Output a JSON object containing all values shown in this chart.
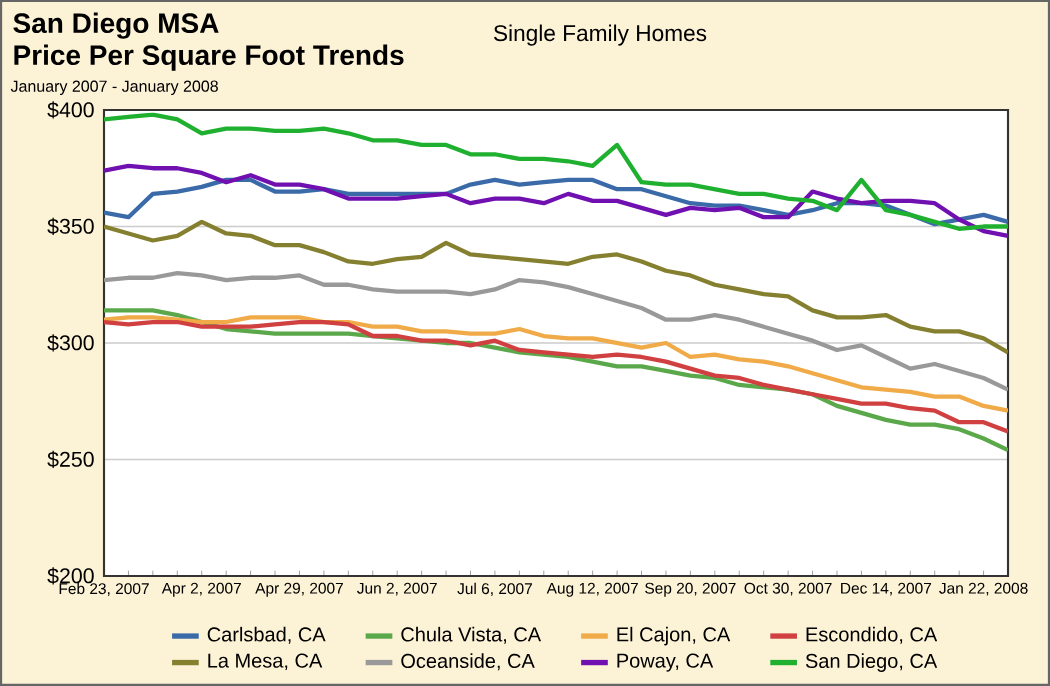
{
  "chart_data": {
    "type": "line",
    "title": "San Diego MSA",
    "subtitle": "Price Per Square Foot Trends",
    "annotations": [
      "Single Family Homes",
      "January 2007 - January 2008"
    ],
    "categories": [
      "Feb 23, 2007",
      null,
      null,
      null,
      "Apr 2, 2007",
      null,
      null,
      null,
      "Apr 29, 2007",
      null,
      null,
      null,
      "Jun 2, 2007",
      null,
      null,
      null,
      "Jul 6, 2007",
      null,
      null,
      null,
      "Aug 12, 2007",
      null,
      null,
      null,
      "Sep 20, 2007",
      null,
      null,
      null,
      "Oct 30, 2007",
      null,
      null,
      null,
      "Dec 14, 2007",
      null,
      null,
      null,
      "Jan 22, 2008",
      null
    ],
    "series": [
      {
        "name": "Carlsbad, CA",
        "color": "#3a6aa8",
        "values": [
          356,
          354,
          364,
          365,
          367,
          370,
          370,
          365,
          365,
          366,
          364,
          364,
          364,
          364,
          364,
          368,
          370,
          368,
          369,
          370,
          370,
          366,
          366,
          363,
          360,
          359,
          359,
          357,
          355,
          357,
          360,
          360,
          359,
          355,
          351,
          353,
          355,
          352
        ]
      },
      {
        "name": "Chula Vista, CA",
        "color": "#5aa84a",
        "values": [
          314,
          314,
          314,
          312,
          309,
          306,
          305,
          304,
          304,
          304,
          304,
          303,
          302,
          301,
          300,
          300,
          298,
          296,
          295,
          294,
          292,
          290,
          290,
          288,
          286,
          285,
          282,
          281,
          280,
          278,
          273,
          270,
          267,
          265,
          265,
          263,
          259,
          254
        ]
      },
      {
        "name": "El Cajon, CA",
        "color": "#f0aa48",
        "values": [
          310,
          311,
          311,
          310,
          309,
          309,
          311,
          311,
          311,
          309,
          309,
          307,
          307,
          305,
          305,
          304,
          304,
          306,
          303,
          302,
          302,
          300,
          298,
          300,
          294,
          295,
          293,
          292,
          290,
          287,
          284,
          281,
          280,
          279,
          277,
          277,
          273,
          271
        ]
      },
      {
        "name": "Escondido, CA",
        "color": "#d04040",
        "values": [
          309,
          308,
          309,
          309,
          307,
          307,
          307,
          308,
          309,
          309,
          308,
          303,
          303,
          301,
          301,
          299,
          301,
          297,
          296,
          295,
          294,
          295,
          294,
          292,
          289,
          286,
          285,
          282,
          280,
          278,
          276,
          274,
          274,
          272,
          271,
          266,
          266,
          262
        ]
      },
      {
        "name": "La Mesa, CA",
        "color": "#858030",
        "values": [
          350,
          347,
          344,
          346,
          352,
          347,
          346,
          342,
          342,
          339,
          335,
          334,
          336,
          337,
          343,
          338,
          337,
          336,
          335,
          334,
          337,
          338,
          335,
          331,
          329,
          325,
          323,
          321,
          320,
          314,
          311,
          311,
          312,
          307,
          305,
          305,
          302,
          296
        ]
      },
      {
        "name": "Oceanside, CA",
        "color": "#999999",
        "values": [
          327,
          328,
          328,
          330,
          329,
          327,
          328,
          328,
          329,
          325,
          325,
          323,
          322,
          322,
          322,
          321,
          323,
          327,
          326,
          324,
          321,
          318,
          315,
          310,
          310,
          312,
          310,
          307,
          304,
          301,
          297,
          299,
          294,
          289,
          291,
          288,
          285,
          280
        ]
      },
      {
        "name": "Poway, CA",
        "color": "#7010b0",
        "values": [
          374,
          376,
          375,
          375,
          373,
          369,
          372,
          368,
          368,
          366,
          362,
          362,
          362,
          363,
          364,
          360,
          362,
          362,
          360,
          364,
          361,
          361,
          358,
          355,
          358,
          357,
          358,
          354,
          354,
          365,
          362,
          360,
          361,
          361,
          360,
          353,
          348,
          346
        ]
      },
      {
        "name": "San Diego, CA",
        "color": "#20b030",
        "values": [
          396,
          397,
          398,
          396,
          390,
          392,
          392,
          391,
          391,
          392,
          390,
          387,
          387,
          385,
          385,
          381,
          381,
          379,
          379,
          378,
          376,
          385,
          369,
          368,
          368,
          366,
          364,
          364,
          362,
          361,
          357,
          370,
          357,
          355,
          352,
          349,
          350,
          350
        ]
      }
    ],
    "ylim": [
      200,
      400
    ],
    "yticks": [
      {
        "value": 200,
        "label": "$200"
      },
      {
        "value": 250,
        "label": "$250"
      },
      {
        "value": 300,
        "label": "$300"
      },
      {
        "value": 350,
        "label": "$350"
      },
      {
        "value": 400,
        "label": "$400"
      }
    ],
    "grid": "y",
    "legend": "bottom",
    "line_style": "solid"
  }
}
